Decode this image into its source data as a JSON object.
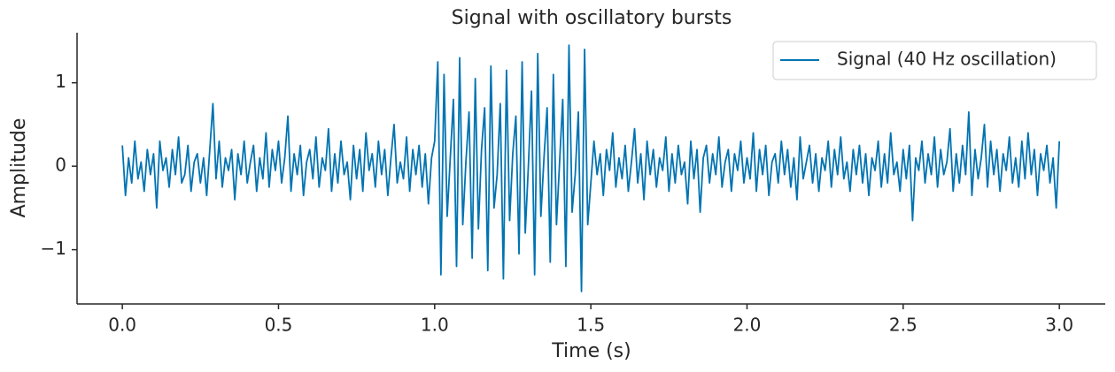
{
  "chart_data": {
    "type": "line",
    "title": "Signal with oscillatory bursts",
    "x_label": "Time (s)",
    "y_label": "Amplitude",
    "legend": "upper right",
    "xlim": [
      -0.145,
      3.147
    ],
    "ylim": [
      -1.65,
      1.6
    ],
    "xticks": [
      {
        "value": 0,
        "label": "0.0"
      },
      0.5,
      {
        "value": 1,
        "label": "1.0"
      },
      1.5,
      {
        "value": 2,
        "label": "2.0"
      },
      2.5,
      {
        "value": 3,
        "label": "3.0"
      }
    ],
    "yticks": [
      {
        "value": -1,
        "label": "−1"
      },
      0,
      1
    ],
    "x": [
      0,
      0.01,
      0.02,
      0.03,
      0.04,
      0.05,
      0.06,
      0.07,
      0.08,
      0.09,
      0.1,
      0.11,
      0.12,
      0.13,
      0.14,
      0.15,
      0.16,
      0.17,
      0.18,
      0.19,
      0.2,
      0.21,
      0.22,
      0.23,
      0.24,
      0.25,
      0.26,
      0.27,
      0.28,
      0.29,
      0.3,
      0.31,
      0.32,
      0.33,
      0.34,
      0.35,
      0.36,
      0.37,
      0.38,
      0.39,
      0.4,
      0.41,
      0.42,
      0.43,
      0.44,
      0.45,
      0.46,
      0.47,
      0.48,
      0.49,
      0.5,
      0.51,
      0.52,
      0.53,
      0.54,
      0.55,
      0.56,
      0.57,
      0.58,
      0.59,
      0.6,
      0.61,
      0.62,
      0.63,
      0.64,
      0.65,
      0.66,
      0.67,
      0.68,
      0.69,
      0.7,
      0.71,
      0.72,
      0.73,
      0.74,
      0.75,
      0.76,
      0.77,
      0.78,
      0.79,
      0.8,
      0.81,
      0.82,
      0.83,
      0.84,
      0.85,
      0.86,
      0.87,
      0.88,
      0.89,
      0.9,
      0.91,
      0.92,
      0.93,
      0.94,
      0.95,
      0.96,
      0.97,
      0.98,
      0.99,
      1,
      1.01,
      1.02,
      1.03,
      1.04,
      1.05,
      1.06,
      1.07,
      1.08,
      1.09,
      1.1,
      1.11,
      1.12,
      1.13,
      1.14,
      1.15,
      1.16,
      1.17,
      1.18,
      1.19,
      1.2,
      1.21,
      1.22,
      1.23,
      1.24,
      1.25,
      1.26,
      1.27,
      1.28,
      1.29,
      1.3,
      1.31,
      1.32,
      1.33,
      1.34,
      1.35,
      1.36,
      1.37,
      1.38,
      1.39,
      1.4,
      1.41,
      1.42,
      1.43,
      1.44,
      1.45,
      1.46,
      1.47,
      1.48,
      1.49,
      1.5,
      1.51,
      1.52,
      1.53,
      1.54,
      1.55,
      1.56,
      1.57,
      1.58,
      1.59,
      1.6,
      1.61,
      1.62,
      1.63,
      1.64,
      1.65,
      1.66,
      1.67,
      1.68,
      1.69,
      1.7,
      1.71,
      1.72,
      1.73,
      1.74,
      1.75,
      1.76,
      1.77,
      1.78,
      1.79,
      1.8,
      1.81,
      1.82,
      1.83,
      1.84,
      1.85,
      1.86,
      1.87,
      1.88,
      1.89,
      1.9,
      1.91,
      1.92,
      1.93,
      1.94,
      1.95,
      1.96,
      1.97,
      1.98,
      1.99,
      2,
      2.01,
      2.02,
      2.03,
      2.04,
      2.05,
      2.06,
      2.07,
      2.08,
      2.09,
      2.1,
      2.11,
      2.12,
      2.13,
      2.14,
      2.15,
      2.16,
      2.17,
      2.18,
      2.19,
      2.2,
      2.21,
      2.22,
      2.23,
      2.24,
      2.25,
      2.26,
      2.27,
      2.28,
      2.29,
      2.3,
      2.31,
      2.32,
      2.33,
      2.34,
      2.35,
      2.36,
      2.37,
      2.38,
      2.39,
      2.4,
      2.41,
      2.42,
      2.43,
      2.44,
      2.45,
      2.46,
      2.47,
      2.48,
      2.49,
      2.5,
      2.51,
      2.52,
      2.53,
      2.54,
      2.55,
      2.56,
      2.57,
      2.58,
      2.59,
      2.6,
      2.61,
      2.62,
      2.63,
      2.64,
      2.65,
      2.66,
      2.67,
      2.68,
      2.69,
      2.7,
      2.71,
      2.72,
      2.73,
      2.74,
      2.75,
      2.76,
      2.77,
      2.78,
      2.79,
      2.8,
      2.81,
      2.82,
      2.83,
      2.84,
      2.85,
      2.86,
      2.87,
      2.88,
      2.89,
      2.9,
      2.91,
      2.92,
      2.93,
      2.94,
      2.95,
      2.96,
      2.97,
      2.98,
      2.99,
      3
    ],
    "series": [
      {
        "name": "Signal (40 Hz oscillation)",
        "color": "#0173b2",
        "values": [
          0.25,
          -0.35,
          0.1,
          -0.2,
          0.3,
          -0.15,
          0.05,
          -0.3,
          0.2,
          -0.1,
          0.15,
          -0.5,
          0.3,
          -0.05,
          0.1,
          -0.25,
          0.2,
          -0.1,
          0.35,
          -0.2,
          -0.1,
          0.25,
          -0.3,
          0.05,
          0.15,
          -0.2,
          0.1,
          -0.35,
          0.2,
          0.75,
          -0.15,
          0.3,
          -0.25,
          0.1,
          -0.05,
          0.2,
          -0.4,
          0.15,
          -0.1,
          0.3,
          -0.2,
          0.05,
          0.25,
          -0.3,
          0.1,
          -0.15,
          0.4,
          -0.25,
          0.2,
          -0.05,
          0.3,
          -0.2,
          0.1,
          0.6,
          -0.3,
          0.15,
          -0.1,
          0.25,
          -0.35,
          0.05,
          0.2,
          -0.15,
          0.35,
          -0.25,
          0.1,
          -0.05,
          0.45,
          -0.3,
          0.15,
          -0.2,
          0.3,
          -0.1,
          0.05,
          -0.4,
          0.25,
          -0.15,
          0.2,
          -0.3,
          0.4,
          -0.05,
          0.15,
          -0.25,
          0.3,
          -0.1,
          0.2,
          -0.35,
          0.1,
          0.5,
          -0.2,
          0.05,
          -0.15,
          0.35,
          -0.3,
          0.2,
          -0.1,
          0.25,
          -0.25,
          0.15,
          -0.45,
          0.1,
          0.3,
          1.25,
          -1.3,
          1.1,
          -0.6,
          0.1,
          0.8,
          -1.2,
          1.3,
          -0.7,
          0.05,
          0.65,
          -1.1,
          1.05,
          -0.75,
          0.2,
          0.7,
          -1.25,
          1.2,
          -0.5,
          -0.1,
          0.75,
          -1.35,
          1.15,
          -0.65,
          0.15,
          0.6,
          -1.05,
          1.25,
          -0.8,
          0,
          0.9,
          -1.3,
          1.35,
          -0.6,
          0.1,
          0.7,
          -1.15,
          1.1,
          -0.7,
          0.05,
          0.8,
          -1.2,
          1.45,
          -0.55,
          -0.1,
          0.65,
          -1.5,
          1.4,
          -0.7,
          -0.2,
          0.3,
          -0.1,
          0.15,
          -0.35,
          0.2,
          -0.05,
          0.4,
          -0.25,
          0.1,
          -0.15,
          0.25,
          -0.3,
          0.05,
          0.45,
          -0.2,
          0.15,
          -0.4,
          0.3,
          -0.1,
          0.2,
          -0.25,
          0.1,
          -0.05,
          0.35,
          -0.3,
          0.15,
          -0.2,
          0.25,
          -0.1,
          0.05,
          -0.45,
          0.3,
          -0.15,
          0.2,
          -0.55,
          0.1,
          0.25,
          -0.2,
          0.15,
          -0.1,
          0.35,
          -0.25,
          0.05,
          0.2,
          -0.3,
          0.15,
          -0.05,
          0.3,
          -0.2,
          0.1,
          -0.15,
          0.4,
          -0.3,
          0.2,
          -0.1,
          0.25,
          -0.35,
          0.05,
          0.15,
          -0.2,
          0.3,
          -0.1,
          0.2,
          -0.25,
          0.1,
          -0.4,
          0.35,
          -0.15,
          0.05,
          0.25,
          -0.2,
          0.15,
          -0.3,
          0.1,
          -0.05,
          0.3,
          -0.25,
          0.2,
          -0.1,
          0.35,
          -0.15,
          0.05,
          -0.3,
          0.2,
          -0.1,
          0.25,
          -0.2,
          0.15,
          -0.35,
          0.1,
          -0.05,
          0.3,
          -0.25,
          0.15,
          -0.2,
          0.4,
          -0.1,
          0.05,
          -0.3,
          0.2,
          -0.15,
          0.25,
          -0.65,
          0.1,
          -0.05,
          0.3,
          -0.2,
          0.15,
          -0.1,
          0.35,
          -0.25,
          0.2,
          -0.1,
          0.05,
          0.45,
          -0.3,
          0.15,
          -0.2,
          0.25,
          -0.1,
          0.65,
          -0.35,
          0.2,
          -0.15,
          0.1,
          0.5,
          -0.25,
          0.3,
          -0.1,
          0.2,
          -0.3,
          0.15,
          -0.05,
          0.35,
          -0.2,
          0.1,
          -0.25,
          0.3,
          -0.15,
          0.4,
          -0.1,
          0.2,
          -0.35,
          0.15,
          -0.05,
          0.25,
          -0.2,
          0.1,
          -0.5,
          0.3
        ]
      }
    ]
  }
}
